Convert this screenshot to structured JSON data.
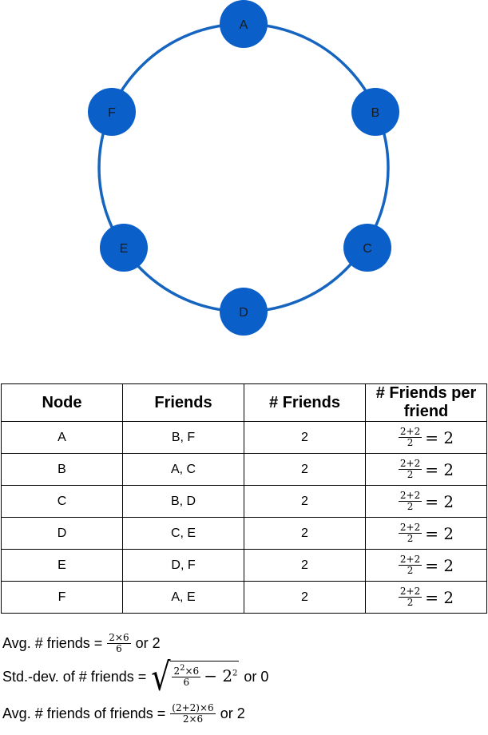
{
  "graph": {
    "edge_color": "#1565c0",
    "node_color": "#0a5fc9",
    "nodes": [
      "A",
      "B",
      "C",
      "D",
      "E",
      "F"
    ]
  },
  "table": {
    "headers": [
      "Node",
      "Friends",
      "# Friends",
      "# Friends per friend"
    ],
    "rows": [
      {
        "node": "A",
        "friends": "B, F",
        "count": "2",
        "ff_num": "2+2",
        "ff_den": "2",
        "ff_result": "= 2"
      },
      {
        "node": "B",
        "friends": "A, C",
        "count": "2",
        "ff_num": "2+2",
        "ff_den": "2",
        "ff_result": "= 2"
      },
      {
        "node": "C",
        "friends": "B, D",
        "count": "2",
        "ff_num": "2+2",
        "ff_den": "2",
        "ff_result": "= 2"
      },
      {
        "node": "D",
        "friends": "C, E",
        "count": "2",
        "ff_num": "2+2",
        "ff_den": "2",
        "ff_result": "= 2"
      },
      {
        "node": "E",
        "friends": "D, F",
        "count": "2",
        "ff_num": "2+2",
        "ff_den": "2",
        "ff_result": "= 2"
      },
      {
        "node": "F",
        "friends": "A, E",
        "count": "2",
        "ff_num": "2+2",
        "ff_den": "2",
        "ff_result": "= 2"
      }
    ]
  },
  "stats": {
    "avg": {
      "label": "Avg. # friends =",
      "num": "2×6",
      "den": "6",
      "tail": "or 2"
    },
    "std": {
      "label": "Std.-dev. of # friends =",
      "num_base": "2",
      "num_exp": "2",
      "num_rest": "×6",
      "den": "6",
      "minus": "− 2",
      "minus_exp": "2",
      "tail": "or 0"
    },
    "avg_ff": {
      "label": "Avg. # friends of friends =",
      "num": "(2+2)×6",
      "den": "2×6",
      "tail": "or 2"
    }
  }
}
